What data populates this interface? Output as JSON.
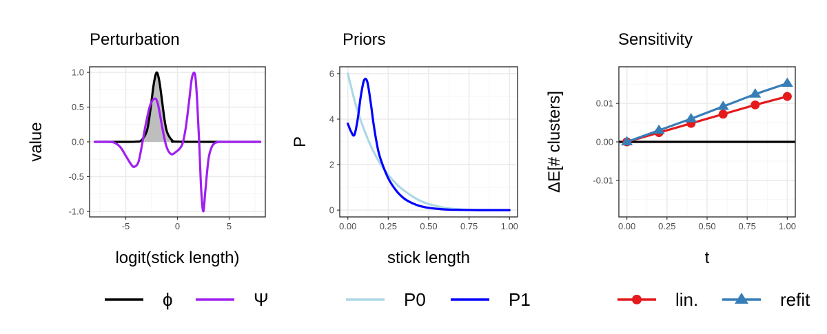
{
  "chart_data": [
    {
      "panel": "perturbation",
      "type": "line",
      "title": "Perturbation",
      "xlabel": "logit(stick length)",
      "ylabel": "value",
      "xlim": [
        -8.5,
        8.5
      ],
      "ylim": [
        -1.08,
        1.08
      ],
      "xticks": [
        -5,
        0,
        5
      ],
      "xtick_labels": [
        "-5",
        "0",
        "5"
      ],
      "yticks": [
        -1.0,
        -0.5,
        0.0,
        0.5,
        1.0
      ],
      "ytick_labels": [
        "-1.0",
        "-0.5",
        "0.0",
        "0.5",
        "1.0"
      ],
      "grid": true,
      "legend_position": "bottom",
      "series": [
        {
          "name": "ϕ",
          "color": "#000000",
          "fill": "#bebebe",
          "x": [
            -8,
            -5,
            -4,
            -3.5,
            -3,
            -2.75,
            -2.5,
            -2.25,
            -2,
            -1.75,
            -1.5,
            -1.25,
            -1,
            -0.5,
            0,
            5,
            8
          ],
          "y": [
            0,
            0,
            0.003,
            0.02,
            0.14,
            0.32,
            0.6,
            0.87,
            1.0,
            0.87,
            0.6,
            0.32,
            0.14,
            0.02,
            0.003,
            0,
            0
          ]
        },
        {
          "name": "Ψ",
          "color": "#a020f0",
          "x": [
            -8,
            -6.5,
            -6,
            -5.5,
            -5,
            -4.5,
            -4.2,
            -3.8,
            -3.5,
            -3.2,
            -3,
            -2.7,
            -2.4,
            -2.1,
            -1.9,
            -1.7,
            -1.4,
            -1.1,
            -0.8,
            -0.5,
            -0.2,
            0.2,
            0.5,
            0.8,
            1.1,
            1.4,
            1.7,
            1.9,
            2.1,
            2.3,
            2.5,
            2.7,
            3,
            3.3,
            3.6,
            4,
            4.5,
            5,
            8
          ],
          "y": [
            0,
            0,
            -0.02,
            -0.08,
            -0.2,
            -0.32,
            -0.36,
            -0.3,
            -0.1,
            0.15,
            0.3,
            0.5,
            0.6,
            0.62,
            0.55,
            0.4,
            0.15,
            -0.05,
            -0.15,
            -0.18,
            -0.15,
            -0.1,
            -0.02,
            0.2,
            0.55,
            0.92,
            0.97,
            0.6,
            0.0,
            -0.7,
            -1.0,
            -0.7,
            -0.25,
            -0.08,
            -0.02,
            0,
            0,
            0,
            0
          ]
        }
      ]
    },
    {
      "panel": "priors",
      "type": "line",
      "title": "Priors",
      "xlabel": "stick length",
      "ylabel": "P",
      "xlim": [
        -0.05,
        1.05
      ],
      "ylim": [
        -0.3,
        6.3
      ],
      "xticks": [
        0,
        0.25,
        0.5,
        0.75,
        1.0
      ],
      "xtick_labels": [
        "0.00",
        "0.25",
        "0.50",
        "0.75",
        "1.00"
      ],
      "yticks": [
        0,
        2,
        4,
        6
      ],
      "ytick_labels": [
        "0",
        "2",
        "4",
        "6"
      ],
      "grid": true,
      "legend_position": "bottom",
      "series": [
        {
          "name": "P0",
          "color": "#add8e6",
          "x": [
            0,
            0.05,
            0.1,
            0.15,
            0.2,
            0.25,
            0.3,
            0.35,
            0.4,
            0.45,
            0.5,
            0.6,
            0.7,
            0.8,
            1.0
          ],
          "y": [
            6.0,
            4.6,
            3.55,
            2.7,
            2.05,
            1.55,
            1.15,
            0.85,
            0.6,
            0.4,
            0.27,
            0.1,
            0.03,
            0.01,
            0.0
          ]
        },
        {
          "name": "P1",
          "color": "#0000ff",
          "x": [
            0,
            0.02,
            0.04,
            0.06,
            0.08,
            0.1,
            0.12,
            0.14,
            0.16,
            0.18,
            0.2,
            0.25,
            0.3,
            0.35,
            0.4,
            0.45,
            0.5,
            0.6,
            0.7,
            0.8,
            1.0
          ],
          "y": [
            3.8,
            3.45,
            3.3,
            3.95,
            5.0,
            5.7,
            5.65,
            4.8,
            3.75,
            2.9,
            2.3,
            1.4,
            0.85,
            0.5,
            0.3,
            0.17,
            0.1,
            0.03,
            0.01,
            0.0,
            0.0
          ]
        }
      ]
    },
    {
      "panel": "sensitivity",
      "type": "line",
      "title": "Sensitivity",
      "xlabel": "t",
      "ylabel": "ΔE[# clusters]",
      "xlim": [
        -0.05,
        1.05
      ],
      "ylim": [
        -0.0195,
        0.0195
      ],
      "xticks": [
        0,
        0.25,
        0.5,
        0.75,
        1.0
      ],
      "xtick_labels": [
        "0.00",
        "0.25",
        "0.50",
        "0.75",
        "1.00"
      ],
      "yticks": [
        -0.01,
        0.0,
        0.01
      ],
      "ytick_labels": [
        "-0.01",
        "0.00",
        "0.01"
      ],
      "zero_line": true,
      "grid": true,
      "legend_position": "bottom",
      "series": [
        {
          "name": "lin.",
          "color": "#e41a1c",
          "marker": "circle",
          "x": [
            0,
            0.2,
            0.4,
            0.6,
            0.8,
            1.0
          ],
          "y": [
            0.0,
            0.0024,
            0.0048,
            0.0072,
            0.0096,
            0.0118
          ]
        },
        {
          "name": "refit",
          "color": "#377eb8",
          "marker": "triangle",
          "x": [
            0,
            0.2,
            0.4,
            0.6,
            0.8,
            1.0
          ],
          "y": [
            0.0,
            0.003,
            0.006,
            0.0092,
            0.0124,
            0.0152
          ]
        }
      ]
    }
  ]
}
